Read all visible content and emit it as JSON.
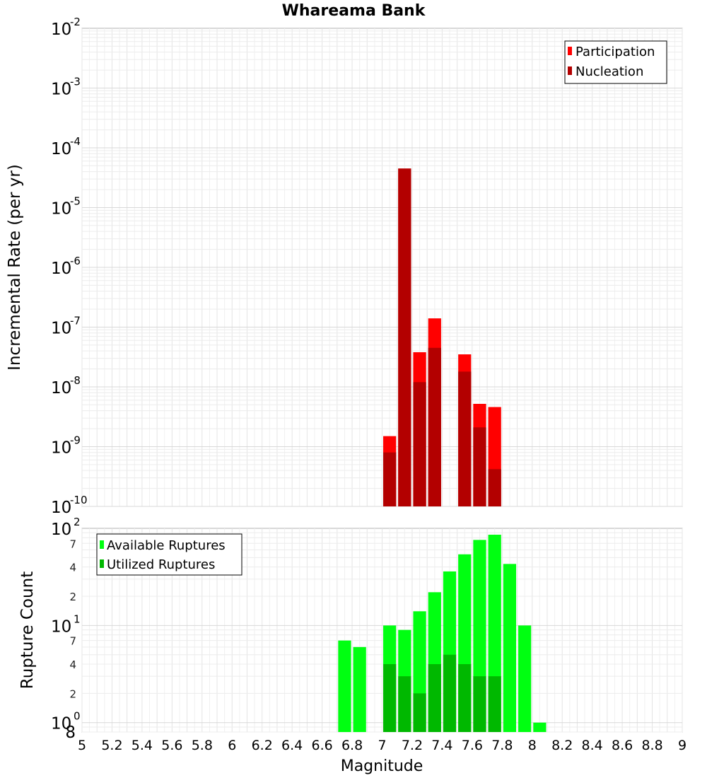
{
  "chart_data": [
    {
      "type": "bar",
      "title": "Whareama Bank",
      "ylabel": "Incremental Rate (per yr)",
      "yscale": "log",
      "ylim": [
        1e-10,
        0.01
      ],
      "xlim": [
        5,
        9
      ],
      "grid": true,
      "legend_position": "top-right",
      "y_ticks": [
        {
          "base": "10",
          "exp": "-10"
        },
        {
          "base": "10",
          "exp": "-9"
        },
        {
          "base": "10",
          "exp": "-8"
        },
        {
          "base": "10",
          "exp": "-7"
        },
        {
          "base": "10",
          "exp": "-6"
        },
        {
          "base": "10",
          "exp": "-5"
        },
        {
          "base": "10",
          "exp": "-4"
        },
        {
          "base": "10",
          "exp": "-3"
        },
        {
          "base": "10",
          "exp": "-2"
        }
      ],
      "series": [
        {
          "name": "Participation",
          "color": "#ff0000",
          "x": [
            7.05,
            7.15,
            7.25,
            7.35,
            7.55,
            7.65,
            7.75
          ],
          "values": [
            1.5e-09,
            4.5e-05,
            3.8e-08,
            1.4e-07,
            3.5e-08,
            5.2e-09,
            4.6e-09
          ]
        },
        {
          "name": "Nucleation",
          "color": "#b30000",
          "x": [
            7.05,
            7.15,
            7.25,
            7.35,
            7.55,
            7.65,
            7.75
          ],
          "values": [
            8e-10,
            4.5e-05,
            1.2e-08,
            4.5e-08,
            1.8e-08,
            2.1e-09,
            4.2e-10
          ]
        }
      ]
    },
    {
      "type": "bar",
      "ylabel": "Rupture Count",
      "xlabel": "Magnitude",
      "yscale": "log",
      "ylim": [
        0.8,
        100
      ],
      "xlim": [
        5,
        9
      ],
      "grid": true,
      "legend_position": "top-left",
      "x_ticks": [
        "5",
        "5.2",
        "5.4",
        "5.6",
        "5.8",
        "6",
        "6.2",
        "6.4",
        "6.6",
        "6.8",
        "7",
        "7.2",
        "7.4",
        "7.6",
        "7.8",
        "8",
        "8.2",
        "8.4",
        "8.6",
        "8.8",
        "9"
      ],
      "y_ticks": [
        {
          "base": "10",
          "exp": "0"
        },
        {
          "base": "10",
          "exp": "1"
        },
        {
          "base": "10",
          "exp": "2"
        }
      ],
      "y_minor_labels": [
        {
          "label": "2",
          "value": 2
        },
        {
          "label": "4",
          "value": 4
        },
        {
          "label": "7",
          "value": 7
        },
        {
          "label": "2",
          "value": 20
        },
        {
          "label": "4",
          "value": 40
        },
        {
          "label": "7",
          "value": 70
        }
      ],
      "y_bottom_label": "8",
      "series": [
        {
          "name": "Available Ruptures",
          "color": "#00ff11",
          "x": [
            6.75,
            6.85,
            7.05,
            7.15,
            7.25,
            7.35,
            7.45,
            7.55,
            7.65,
            7.75,
            7.85,
            7.95,
            8.05
          ],
          "values": [
            7,
            6,
            10,
            9,
            14,
            22,
            36,
            54,
            76,
            86,
            43,
            10,
            1
          ]
        },
        {
          "name": "Utilized Ruptures",
          "color": "#00b800",
          "x": [
            7.05,
            7.15,
            7.25,
            7.35,
            7.45,
            7.55,
            7.65,
            7.75
          ],
          "values": [
            4,
            3,
            2,
            4,
            5,
            4,
            3,
            3
          ]
        }
      ]
    }
  ]
}
